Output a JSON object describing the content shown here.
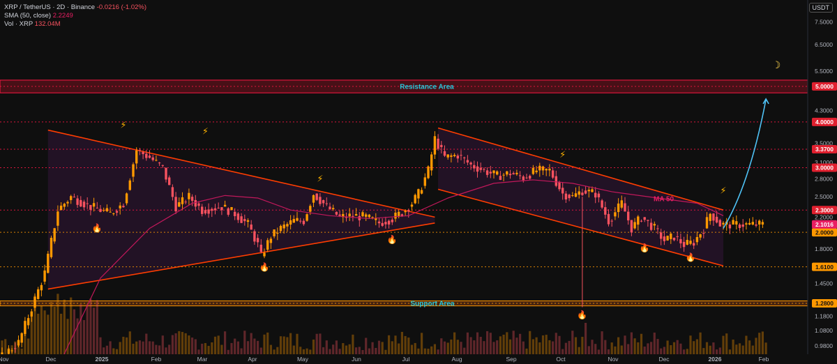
{
  "legend": {
    "symbol": "XRP / TetherUS · 2D · Binance",
    "change": "-0.0216 (-1.02%)",
    "sma_label": "SMA (50, close)",
    "sma_value": "2.2249",
    "vol_label": "Vol · XRP",
    "vol_value": "132.04M"
  },
  "currency_button": "USDT",
  "annotations": {
    "resistance": "Resistance Area",
    "support": "Support Area",
    "ma50": "MA 50"
  },
  "chart_data": {
    "type": "candlestick",
    "scale": "log",
    "price_ticks": [
      "7.5000",
      "6.5000",
      "5.5000",
      "4.3000",
      "3.5000",
      "3.1000",
      "2.8000",
      "2.5000",
      "2.2000",
      "2.0000",
      "1.8000",
      "1.6100",
      "1.4500",
      "1.2800",
      "1.1800",
      "1.0800",
      "0.9800"
    ],
    "tick_values": [
      7.5,
      6.5,
      5.5,
      4.3,
      3.5,
      3.1,
      2.8,
      2.5,
      2.2,
      2.0,
      1.8,
      1.61,
      1.45,
      1.28,
      1.18,
      1.08,
      0.98
    ],
    "time_labels": [
      "Nov",
      "Dec",
      "2025",
      "Feb",
      "Mar",
      "Apr",
      "May",
      "Jun",
      "Jul",
      "Aug",
      "Sep",
      "Oct",
      "Nov",
      "Dec",
      "2026",
      "Feb"
    ],
    "level_lines": [
      {
        "value": 5.0,
        "label": "5.0000",
        "color": "#ff1744"
      },
      {
        "value": 4.0,
        "label": "4.0000",
        "color": "#ff1744"
      },
      {
        "value": 3.37,
        "label": "3.3700",
        "color": "#ff1744"
      },
      {
        "value": 3.0,
        "label": "3.0000",
        "color": "#ff1744"
      },
      {
        "value": 2.3,
        "label": "2.3000",
        "color": "#ff1744"
      },
      {
        "value": 2.0,
        "label": "2.0000",
        "color": "#ff9800"
      },
      {
        "value": 1.61,
        "label": "1.6100",
        "color": "#ff9800"
      },
      {
        "value": 1.28,
        "label": "1.2800",
        "color": "#ff9800"
      }
    ],
    "current_price": {
      "value": 2.1016,
      "label": "2.1016",
      "color": "#e91e63"
    },
    "zones": {
      "resistance": [
        4.8,
        5.2
      ],
      "support": [
        1.26,
        1.3
      ]
    },
    "colors": {
      "up": "#ff9800",
      "down": "#f7525f",
      "sma": "#c2185b",
      "pattern_line": "#ff3d00",
      "pattern_fill": "rgba(156,39,176,0.14)",
      "projection": "#4fc3f7",
      "accent": "#26c6da"
    },
    "close_path": [
      [
        0,
        0.9
      ],
      [
        6,
        1.0
      ],
      [
        14,
        1.55
      ],
      [
        18,
        2.3
      ],
      [
        22,
        2.5
      ],
      [
        28,
        2.35
      ],
      [
        34,
        2.25
      ],
      [
        38,
        2.4
      ],
      [
        42,
        3.35
      ],
      [
        46,
        3.2
      ],
      [
        50,
        3.0
      ],
      [
        54,
        2.35
      ],
      [
        58,
        2.5
      ],
      [
        62,
        2.3
      ],
      [
        68,
        2.35
      ],
      [
        72,
        2.25
      ],
      [
        76,
        2.1
      ],
      [
        79,
        1.85
      ],
      [
        80,
        1.72
      ],
      [
        83,
        1.95
      ],
      [
        86,
        2.05
      ],
      [
        90,
        2.15
      ],
      [
        93,
        2.15
      ],
      [
        96,
        2.55
      ],
      [
        100,
        2.35
      ],
      [
        104,
        2.2
      ],
      [
        108,
        2.22
      ],
      [
        112,
        2.2
      ],
      [
        116,
        2.12
      ],
      [
        120,
        2.18
      ],
      [
        124,
        2.3
      ],
      [
        126,
        2.4
      ],
      [
        128,
        2.55
      ],
      [
        131,
        2.95
      ],
      [
        133,
        3.6
      ],
      [
        136,
        3.2
      ],
      [
        140,
        3.25
      ],
      [
        144,
        3.05
      ],
      [
        148,
        2.95
      ],
      [
        152,
        2.85
      ],
      [
        156,
        2.9
      ],
      [
        160,
        2.82
      ],
      [
        164,
        2.95
      ],
      [
        168,
        2.95
      ],
      [
        172,
        2.55
      ],
      [
        175,
        2.5
      ],
      [
        178,
        2.6
      ],
      [
        182,
        2.55
      ],
      [
        186,
        2.15
      ],
      [
        190,
        2.4
      ],
      [
        193,
        2.05
      ],
      [
        196,
        2.2
      ],
      [
        200,
        2.05
      ],
      [
        203,
        1.9
      ],
      [
        206,
        1.95
      ],
      [
        209,
        1.85
      ],
      [
        212,
        1.88
      ],
      [
        215,
        2.05
      ],
      [
        217,
        2.25
      ],
      [
        219,
        2.16
      ],
      [
        220,
        2.1
      ]
    ],
    "sma_path": [
      [
        16,
        0.82
      ],
      [
        30,
        1.5
      ],
      [
        45,
        2.05
      ],
      [
        58,
        2.4
      ],
      [
        68,
        2.52
      ],
      [
        78,
        2.48
      ],
      [
        88,
        2.3
      ],
      [
        100,
        2.22
      ],
      [
        112,
        2.18
      ],
      [
        124,
        2.22
      ],
      [
        136,
        2.48
      ],
      [
        150,
        2.72
      ],
      [
        162,
        2.78
      ],
      [
        174,
        2.72
      ],
      [
        186,
        2.58
      ],
      [
        200,
        2.48
      ],
      [
        212,
        2.4
      ],
      [
        220,
        2.22
      ]
    ],
    "triangle": {
      "upper": [
        [
          14,
          3.8
        ],
        [
          132,
          2.2
        ]
      ],
      "lower": [
        [
          14,
          1.4
        ],
        [
          132,
          2.12
        ]
      ]
    },
    "channel": {
      "upper": [
        [
          133,
          3.85
        ],
        [
          220,
          2.3
        ]
      ],
      "lower": [
        [
          133,
          2.62
        ],
        [
          220,
          1.62
        ]
      ]
    },
    "projection": [
      [
        220,
        2.05
      ],
      [
        228,
        2.7
      ],
      [
        233,
        4.6
      ]
    ],
    "n_bars": 234
  }
}
